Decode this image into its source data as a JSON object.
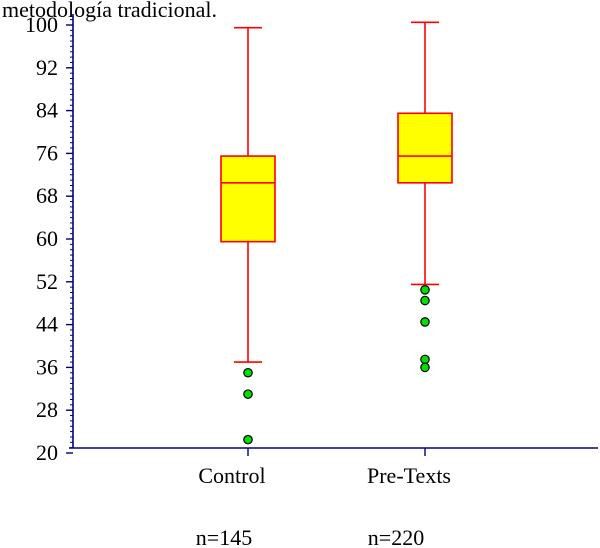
{
  "chart_data": {
    "type": "box",
    "title_fragment": "metodología tradicional.",
    "xlabel": "",
    "ylabel": "",
    "ylim": [
      20,
      101
    ],
    "yticks": [
      20,
      28,
      36,
      44,
      52,
      60,
      68,
      76,
      84,
      92,
      100
    ],
    "categories": [
      "Control",
      "Pre-Texts"
    ],
    "counts": [
      "n=145",
      "n=220"
    ],
    "boxes": [
      {
        "category": "Control",
        "whisker_low": 37,
        "q1": 59.5,
        "median": 70.5,
        "q3": 75.5,
        "whisker_high": 99.5,
        "outliers": [
          35,
          31,
          22.5
        ]
      },
      {
        "category": "Pre-Texts",
        "whisker_low": 51.5,
        "q1": 70.5,
        "median": 75.5,
        "q3": 83.5,
        "whisker_high": 100.5,
        "outliers": [
          50.5,
          48.5,
          44.5,
          37.5,
          36
        ]
      }
    ],
    "colors": {
      "box_fill": "#ffff00",
      "box_stroke": "#ff0000",
      "whisker": "#ff0000",
      "outlier_fill": "#00e000",
      "axis": "#000080"
    }
  }
}
